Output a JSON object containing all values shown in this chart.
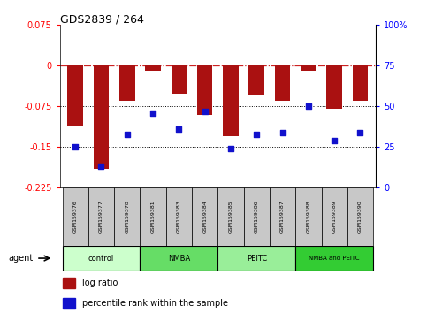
{
  "title": "GDS2839 / 264",
  "samples": [
    "GSM159376",
    "GSM159377",
    "GSM159378",
    "GSM159381",
    "GSM159383",
    "GSM159384",
    "GSM159385",
    "GSM159386",
    "GSM159387",
    "GSM159388",
    "GSM159389",
    "GSM159390"
  ],
  "log_ratio": [
    -0.112,
    -0.19,
    -0.065,
    -0.009,
    -0.052,
    -0.09,
    -0.13,
    -0.055,
    -0.065,
    -0.01,
    -0.08,
    -0.065
  ],
  "percentile_rank": [
    25,
    13,
    33,
    46,
    36,
    47,
    24,
    33,
    34,
    50,
    29,
    34
  ],
  "groups": [
    {
      "label": "control",
      "start": 0,
      "end": 3,
      "color": "#ccffcc"
    },
    {
      "label": "NMBA",
      "start": 3,
      "end": 6,
      "color": "#66dd66"
    },
    {
      "label": "PEITC",
      "start": 6,
      "end": 9,
      "color": "#99ee99"
    },
    {
      "label": "NMBA and PEITC",
      "start": 9,
      "end": 12,
      "color": "#33cc33"
    }
  ],
  "ylim_left": [
    -0.225,
    0.075
  ],
  "ylim_right": [
    0,
    100
  ],
  "yticks_left": [
    -0.225,
    -0.15,
    -0.075,
    0,
    0.075
  ],
  "yticks_right": [
    0,
    25,
    50,
    75,
    100
  ],
  "bar_color": "#aa1111",
  "dot_color": "#1111cc",
  "hline_zero_color": "#cc2222",
  "hline_dotted_color": "#000000"
}
